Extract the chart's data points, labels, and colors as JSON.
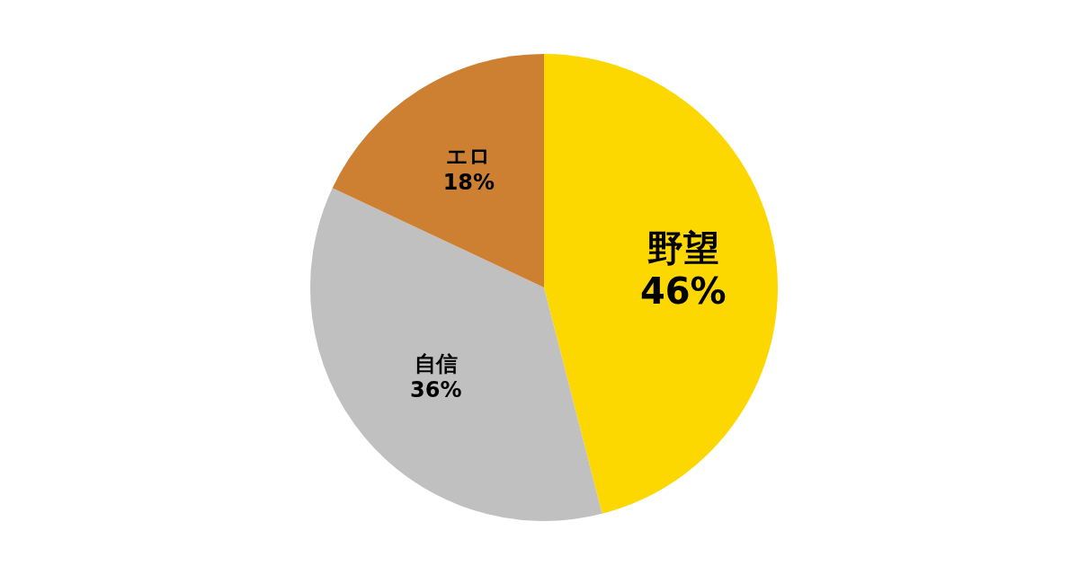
{
  "chart_data": {
    "type": "pie",
    "categories": [
      "野望",
      "自信",
      "エロ"
    ],
    "values": [
      46,
      36,
      18
    ],
    "colors": [
      "#fdd700",
      "#c0c0c0",
      "#cd8031"
    ],
    "value_labels": [
      "46%",
      "36%",
      "18%"
    ],
    "legend": false
  }
}
